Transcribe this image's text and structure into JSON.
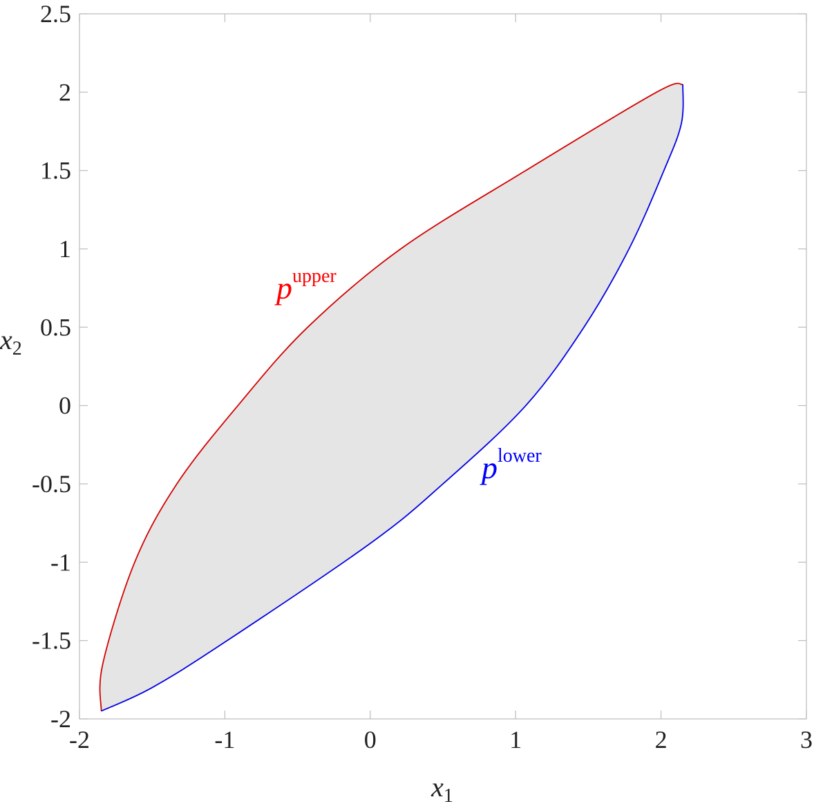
{
  "chart_data": {
    "type": "region",
    "xlabel": {
      "text": "x",
      "sub": "1"
    },
    "ylabel": {
      "text": "x",
      "sub": "2"
    },
    "xlim": [
      -2,
      3
    ],
    "xticks": [
      -2,
      -1,
      0,
      1,
      2,
      3
    ],
    "ylim": [
      -2,
      2.5
    ],
    "yticks": [
      -2,
      -1.5,
      -1,
      -0.5,
      0,
      0.5,
      1,
      1.5,
      2,
      2.5
    ],
    "fill_color": "#e5e5e5",
    "series": [
      {
        "name": "upper",
        "color": "#d40000",
        "x": [
          -1.85,
          -1.84,
          -1.62,
          -1.33,
          -0.91,
          -0.43,
          0.21,
          1.07,
          1.97,
          2.15
        ],
        "values": [
          -1.95,
          -1.65,
          -1,
          -0.5,
          0,
          0.5,
          1,
          1.5,
          2,
          2.05
        ]
      },
      {
        "name": "lower",
        "color": "#0000e6",
        "x": [
          2.15,
          2.14,
          2.02,
          1.78,
          1.47,
          1.07,
          0.5,
          0,
          -1,
          -1.5,
          -1.85
        ],
        "values": [
          2.05,
          1.8,
          1.5,
          1,
          0.5,
          0,
          -0.5,
          -0.88,
          -1.51,
          -1.8,
          -1.95
        ]
      }
    ],
    "annotations": [
      {
        "text": "p",
        "sup": "upper",
        "color": "#ff0000"
      },
      {
        "text": "p",
        "sup": "lower",
        "color": "#0000ff"
      }
    ]
  }
}
